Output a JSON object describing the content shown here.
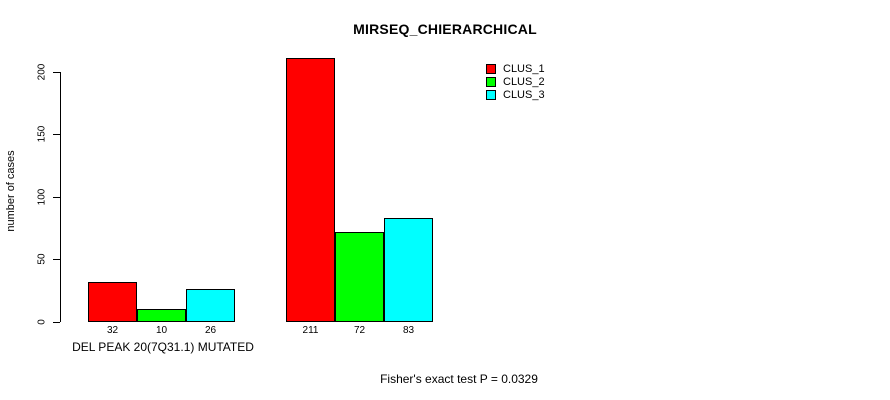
{
  "title": "MIRSEQ_CHIERARCHICAL",
  "y_axis": {
    "label": "number of cases",
    "ticks": [
      0,
      50,
      100,
      150,
      200
    ]
  },
  "x_axis": {
    "group_label": "DEL PEAK 20(7Q31.1) MUTATED"
  },
  "legend": {
    "items": [
      {
        "label": "CLUS_1",
        "color": "#ff0000"
      },
      {
        "label": "CLUS_2",
        "color": "#00ff00"
      },
      {
        "label": "CLUS_3",
        "color": "#00ffff"
      }
    ]
  },
  "footnote": "Fisher's exact test P = 0.0329",
  "chart_data": {
    "type": "bar",
    "title": "MIRSEQ_CHIERARCHICAL",
    "xlabel": "DEL PEAK 20(7Q31.1) MUTATED",
    "ylabel": "number of cases",
    "yticks": [
      0,
      50,
      100,
      150,
      200
    ],
    "ylim": [
      0,
      215
    ],
    "grid": false,
    "legend_position": "top-right",
    "bar_value_labels_shown": true,
    "annotation": "Fisher's exact test P = 0.0329",
    "groups": [
      {
        "group_index": 0,
        "values": [
          32,
          10,
          26
        ]
      },
      {
        "group_index": 1,
        "values": [
          211,
          72,
          83
        ]
      }
    ],
    "series": [
      {
        "name": "CLUS_1",
        "color": "#ff0000",
        "values": [
          32,
          211
        ]
      },
      {
        "name": "CLUS_2",
        "color": "#00ff00",
        "values": [
          10,
          72
        ]
      },
      {
        "name": "CLUS_3",
        "color": "#00ffff",
        "values": [
          26,
          83
        ]
      }
    ]
  }
}
